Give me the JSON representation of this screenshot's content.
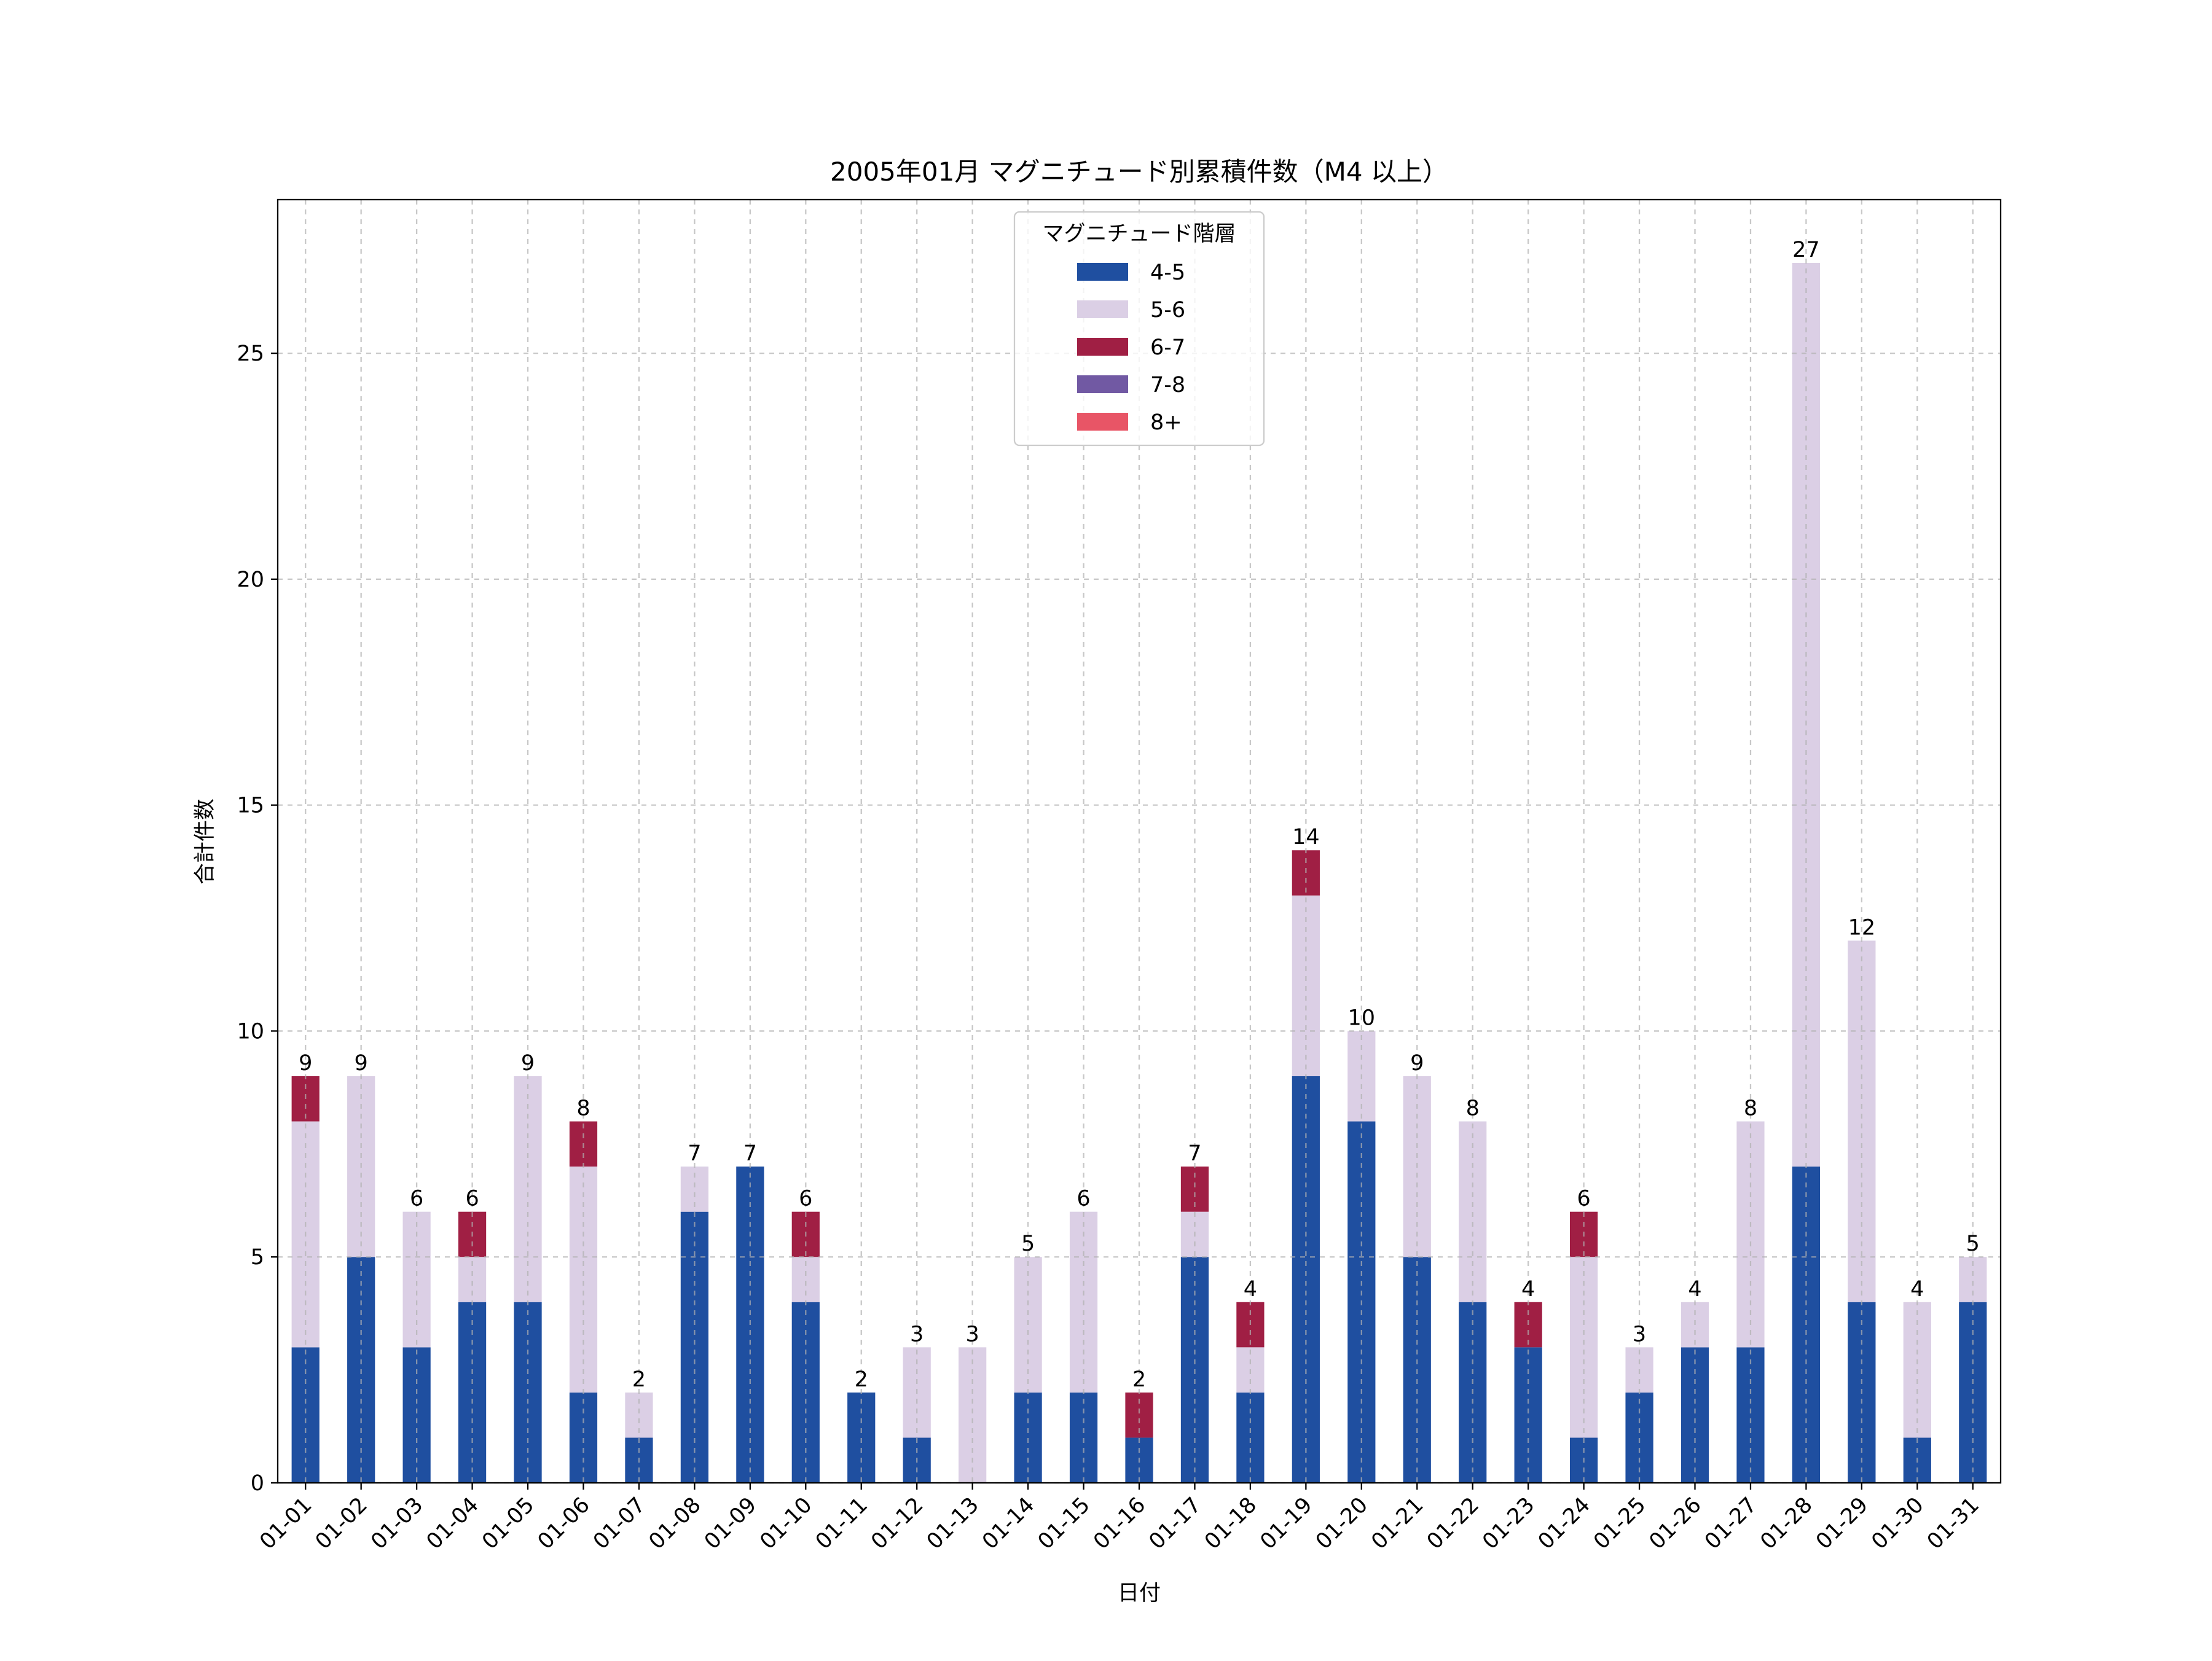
{
  "chart_data": {
    "type": "bar",
    "stacked": true,
    "title": "2005年01月 マグニチュード別累積件数（M4 以上）",
    "xlabel": "日付",
    "ylabel": "合計件数",
    "ylim": [
      0,
      28.4
    ],
    "yticks": [
      0,
      5,
      10,
      15,
      20,
      25
    ],
    "grid": true,
    "legend": {
      "title": "マグニチュード階層",
      "placement": "top-center"
    },
    "categories": [
      "01-01",
      "01-02",
      "01-03",
      "01-04",
      "01-05",
      "01-06",
      "01-07",
      "01-08",
      "01-09",
      "01-10",
      "01-11",
      "01-12",
      "01-13",
      "01-14",
      "01-15",
      "01-16",
      "01-17",
      "01-18",
      "01-19",
      "01-20",
      "01-21",
      "01-22",
      "01-23",
      "01-24",
      "01-25",
      "01-26",
      "01-27",
      "01-28",
      "01-29",
      "01-30",
      "01-31"
    ],
    "series": [
      {
        "name": "4-5",
        "color": "#1f4fa0",
        "values": [
          3,
          5,
          3,
          4,
          4,
          2,
          1,
          6,
          7,
          4,
          2,
          1,
          0,
          2,
          2,
          1,
          5,
          2,
          9,
          8,
          5,
          4,
          3,
          1,
          2,
          3,
          3,
          7,
          4,
          1,
          4
        ]
      },
      {
        "name": "5-6",
        "color": "#dbcfe5",
        "values": [
          5,
          4,
          3,
          1,
          5,
          5,
          1,
          1,
          0,
          1,
          0,
          2,
          3,
          3,
          4,
          0,
          1,
          1,
          4,
          2,
          4,
          4,
          0,
          4,
          1,
          1,
          5,
          20,
          8,
          3,
          1
        ]
      },
      {
        "name": "6-7",
        "color": "#a01f44",
        "values": [
          1,
          0,
          0,
          1,
          0,
          1,
          0,
          0,
          0,
          1,
          0,
          0,
          0,
          0,
          0,
          1,
          1,
          1,
          1,
          0,
          0,
          0,
          1,
          1,
          0,
          0,
          0,
          0,
          0,
          0,
          0
        ]
      },
      {
        "name": "7-8",
        "color": "#7159a3",
        "values": [
          0,
          0,
          0,
          0,
          0,
          0,
          0,
          0,
          0,
          0,
          0,
          0,
          0,
          0,
          0,
          0,
          0,
          0,
          0,
          0,
          0,
          0,
          0,
          0,
          0,
          0,
          0,
          0,
          0,
          0,
          0
        ]
      },
      {
        "name": "8+",
        "color": "#e85566",
        "values": [
          0,
          0,
          0,
          0,
          0,
          0,
          0,
          0,
          0,
          0,
          0,
          0,
          0,
          0,
          0,
          0,
          0,
          0,
          0,
          0,
          0,
          0,
          0,
          0,
          0,
          0,
          0,
          0,
          0,
          0,
          0
        ]
      }
    ],
    "totals": [
      9,
      9,
      6,
      6,
      9,
      8,
      2,
      7,
      7,
      6,
      2,
      3,
      3,
      5,
      6,
      2,
      7,
      4,
      14,
      10,
      9,
      8,
      4,
      6,
      3,
      4,
      8,
      27,
      12,
      4,
      5
    ]
  }
}
